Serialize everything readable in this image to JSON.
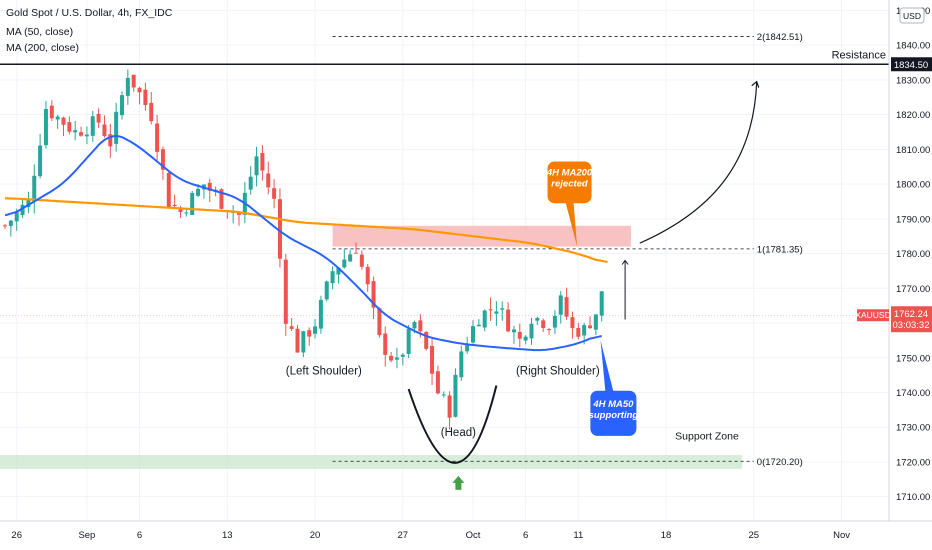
{
  "header": {
    "title": "Gold Spot / U.S. Dollar, 4h, FX_IDC",
    "indicators": [
      "MA (50, close)",
      "MA (200, close)"
    ]
  },
  "currency_badge": "USD",
  "colors": {
    "up": "#26a69a",
    "down": "#ef5350",
    "ma50": "#2962ff",
    "ma200": "#ff9800",
    "support_zone": "#c8e6c9",
    "resistance_zone": "#f8b3b3",
    "ma200_callout": "#f57c00",
    "ma50_callout": "#2962ff"
  },
  "chart_data": {
    "type": "candlestick",
    "symbol": "XAUUSD",
    "timeframe": "4h",
    "ylim": [
      1703,
      1853
    ],
    "y_ticks": [
      1710,
      1720,
      1730,
      1740,
      1750,
      1760,
      1770,
      1780,
      1790,
      1800,
      1810,
      1820,
      1830,
      1840,
      1850
    ],
    "x_ticks": [
      {
        "label": "26",
        "i": 2
      },
      {
        "label": "Sep",
        "i": 14
      },
      {
        "label": "6",
        "i": 23
      },
      {
        "label": "13",
        "i": 38
      },
      {
        "label": "20",
        "i": 53
      },
      {
        "label": "27",
        "i": 68
      },
      {
        "label": "Oct",
        "i": 80
      },
      {
        "label": "6",
        "i": 89
      },
      {
        "label": "11",
        "i": 98
      },
      {
        "label": "18",
        "i": 113
      },
      {
        "label": "25",
        "i": 128
      },
      {
        "label": "Nov",
        "i": 143
      }
    ],
    "close_keypoints": [
      [
        0,
        1788
      ],
      [
        4,
        1795
      ],
      [
        7,
        1822
      ],
      [
        12,
        1815
      ],
      [
        16,
        1818
      ],
      [
        18,
        1812
      ],
      [
        21,
        1832
      ],
      [
        25,
        1820
      ],
      [
        28,
        1795
      ],
      [
        30,
        1792
      ],
      [
        34,
        1800
      ],
      [
        37,
        1795
      ],
      [
        40,
        1791
      ],
      [
        43,
        1808
      ],
      [
        46,
        1795
      ],
      [
        48,
        1762
      ],
      [
        50,
        1753
      ],
      [
        53,
        1760
      ],
      [
        56,
        1775
      ],
      [
        60,
        1782
      ],
      [
        62,
        1770
      ],
      [
        64,
        1755
      ],
      [
        67,
        1748
      ],
      [
        70,
        1760
      ],
      [
        72,
        1752
      ],
      [
        74,
        1740
      ],
      [
        76,
        1735
      ],
      [
        78,
        1752
      ],
      [
        81,
        1762
      ],
      [
        84,
        1765
      ],
      [
        86,
        1760
      ],
      [
        88,
        1755
      ],
      [
        90,
        1762
      ],
      [
        93,
        1760
      ],
      [
        95,
        1766
      ],
      [
        97,
        1758
      ],
      [
        99,
        1758
      ],
      [
        101,
        1763
      ],
      [
        102,
        1768
      ]
    ],
    "ma50": [
      [
        0,
        1790
      ],
      [
        10,
        1800
      ],
      [
        18,
        1815
      ],
      [
        22,
        1812
      ],
      [
        30,
        1801
      ],
      [
        40,
        1796
      ],
      [
        48,
        1785
      ],
      [
        55,
        1779
      ],
      [
        60,
        1771
      ],
      [
        65,
        1762
      ],
      [
        72,
        1756
      ],
      [
        78,
        1754
      ],
      [
        84,
        1753
      ],
      [
        92,
        1752
      ],
      [
        98,
        1754
      ],
      [
        102,
        1757
      ]
    ],
    "ma200": [
      [
        0,
        1796
      ],
      [
        20,
        1794
      ],
      [
        30,
        1793
      ],
      [
        40,
        1792
      ],
      [
        50,
        1789
      ],
      [
        60,
        1788
      ],
      [
        70,
        1787
      ],
      [
        80,
        1785
      ],
      [
        90,
        1783
      ],
      [
        98,
        1780
      ],
      [
        103,
        1777
      ]
    ],
    "last_price": {
      "label": "XAUUSD",
      "value": "1762.24",
      "timer": "03:03:32"
    },
    "resistance": {
      "label": "Resistance",
      "value": "1834.50"
    },
    "fib_levels": [
      {
        "label": "2(1842.51)",
        "value": 1842.51
      },
      {
        "label": "1(1781.35)",
        "value": 1781.35
      },
      {
        "label": "0(1720.20)",
        "value": 1720.2
      }
    ],
    "resistance_zone": [
      1782,
      1788
    ],
    "support_zone": [
      1718,
      1722
    ],
    "annotations": {
      "left_shoulder": "(Left Shoulder)",
      "head": "(Head)",
      "right_shoulder": "(Right Shoulder)",
      "support_zone": "Support Zone",
      "ma200_callout": [
        "4H MA200",
        "rejected"
      ],
      "ma50_callout": [
        "4H MA50",
        "supporting"
      ]
    }
  }
}
